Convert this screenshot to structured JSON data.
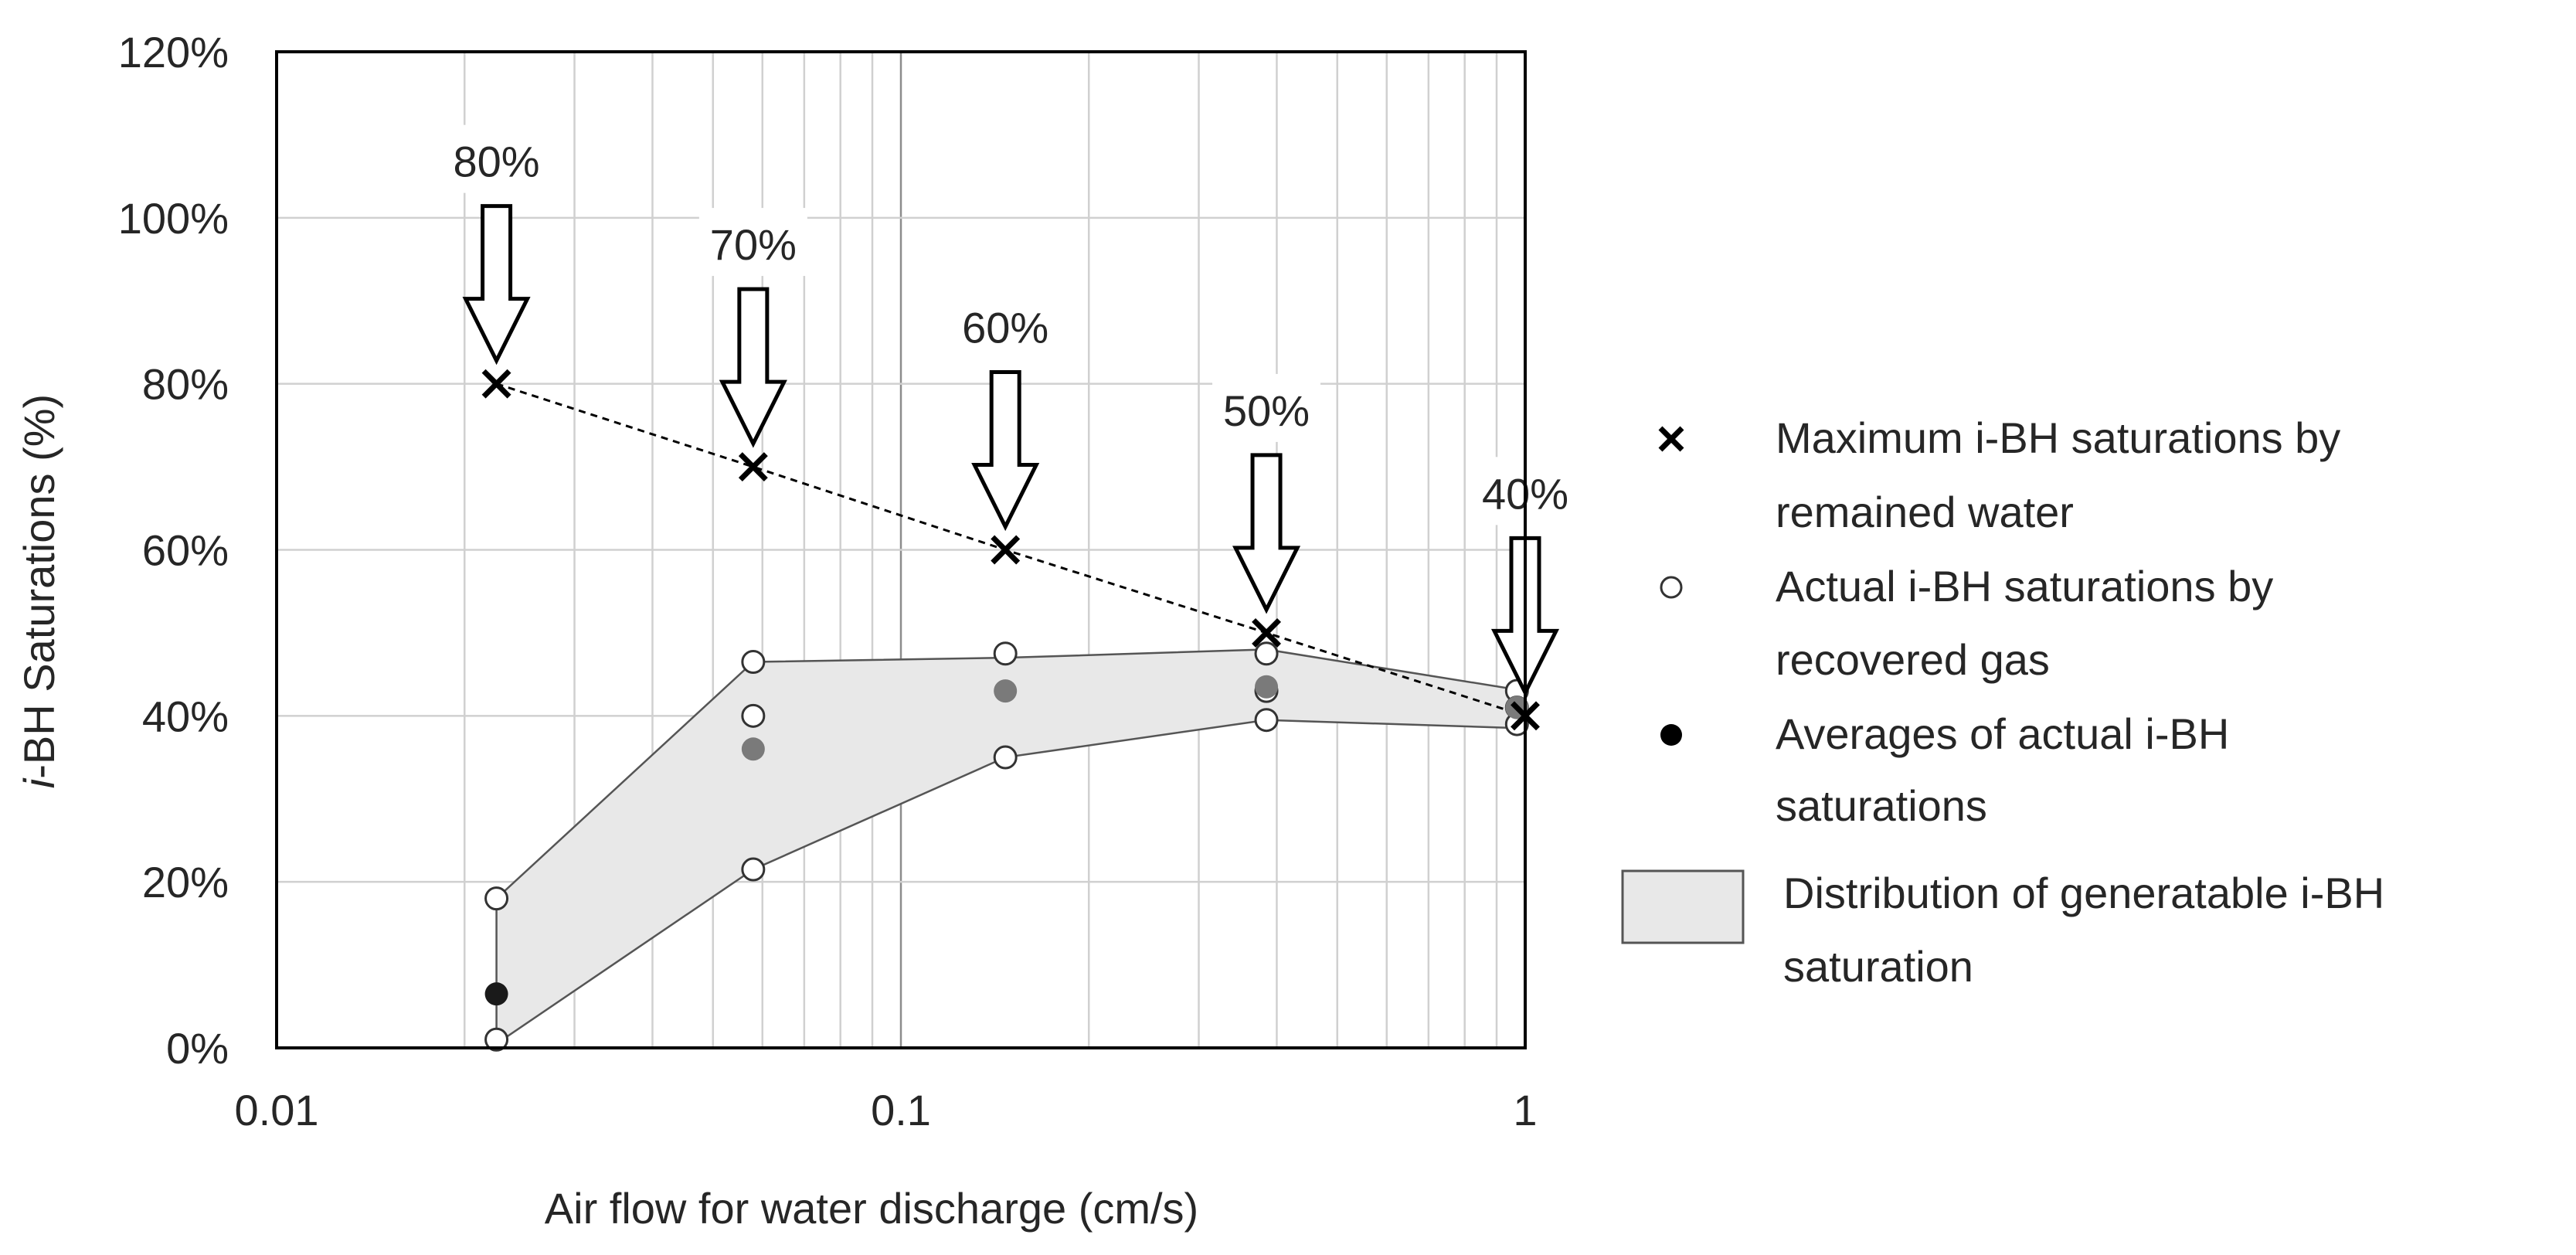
{
  "chart_data": {
    "type": "scatter",
    "title": "",
    "xlabel": "Air flow for water discharge (cm/s)",
    "ylabel_italic": "i",
    "ylabel_rest": "-BH Saturations (%)",
    "xscale": "log",
    "xlim": [
      0.01,
      1
    ],
    "ylim": [
      0,
      120
    ],
    "x_ticks": [
      0.01,
      0.1,
      1
    ],
    "x_tick_labels": [
      "0.01",
      "0.1",
      "1"
    ],
    "y_ticks": [
      0,
      20,
      40,
      60,
      80,
      100,
      120
    ],
    "y_tick_labels": [
      "0%",
      "20%",
      "40%",
      "60%",
      "80%",
      "100%",
      "120%"
    ],
    "grid": true,
    "series": [
      {
        "name": "Maximum i-BH saturations by remained water",
        "marker": "x",
        "line": "dashed",
        "x": [
          0.0225,
          0.058,
          0.147,
          0.385,
          1.0
        ],
        "y": [
          80,
          70,
          60,
          50,
          40
        ]
      },
      {
        "name": "Actual i-BH saturations by recovered gas",
        "marker": "open-circle",
        "x": [
          0.0225,
          0.0225,
          0.058,
          0.058,
          0.058,
          0.147,
          0.147,
          0.385,
          0.385,
          0.385,
          0.97,
          0.97,
          0.97
        ],
        "y": [
          18,
          1,
          46.5,
          40,
          21.5,
          47.5,
          35,
          47.5,
          43,
          39.5,
          43,
          41,
          39
        ]
      },
      {
        "name": "Averages of actual i-BH saturations",
        "marker": "filled-circle",
        "x": [
          0.0225,
          0.058,
          0.147,
          0.385,
          0.97
        ],
        "y": [
          6.5,
          36,
          43,
          43.5,
          41
        ]
      }
    ],
    "band": {
      "name": "Distribution of generatable i-BH saturation",
      "upper": [
        [
          0.0225,
          18
        ],
        [
          0.058,
          46.5
        ],
        [
          0.147,
          47
        ],
        [
          0.385,
          48
        ],
        [
          1.0,
          43
        ]
      ],
      "lower": [
        [
          1.0,
          38.5
        ],
        [
          0.385,
          39.5
        ],
        [
          0.147,
          35
        ],
        [
          0.058,
          21.5
        ],
        [
          0.0225,
          0.5
        ]
      ]
    },
    "annotations": [
      {
        "text": "80%",
        "x": 0.0225,
        "y": 80
      },
      {
        "text": "70%",
        "x": 0.058,
        "y": 70
      },
      {
        "text": "60%",
        "x": 0.147,
        "y": 60
      },
      {
        "text": "50%",
        "x": 0.385,
        "y": 50
      },
      {
        "text": "40%",
        "x": 1.0,
        "y": 40
      }
    ],
    "legend": {
      "placement": "right",
      "entries": [
        {
          "marker": "x",
          "line1": "Maximum i-BH saturations by",
          "line2": "remained water"
        },
        {
          "marker": "open-circle",
          "line1": "Actual i-BH saturations by",
          "line2": "recovered gas"
        },
        {
          "marker": "filled-circle",
          "line1": "Averages of actual i-BH",
          "line2": "saturations"
        },
        {
          "marker": "band",
          "line1": "Distribution of generatable i-BH",
          "line2": "saturation"
        }
      ]
    },
    "colors": {
      "axis": "#000000",
      "grid": "#d0d0d0",
      "band_fill": "#e8e8e8",
      "band_edge": "#555555",
      "open_marker": "#333333",
      "avg_marker": "#7a7a7a",
      "avg_marker_first": "#1a1a1a",
      "text": "#262626"
    }
  }
}
